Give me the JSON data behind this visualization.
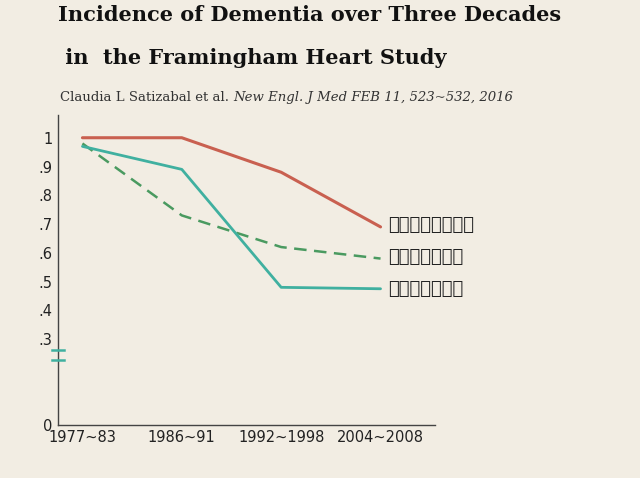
{
  "title_line1": "Incidence of Dementia over Three Decades",
  "title_line2": " in  the Framingham Heart Study",
  "subtitle_normal": "Claudia L Satizabal et al. ",
  "subtitle_italic": "New Engl. J Med FEB 11, 523~532, 2016",
  "x_labels": [
    "1977~83",
    "1986~91",
    "1992~1998",
    "2004~2008"
  ],
  "x_positions": [
    0,
    1,
    2,
    3
  ],
  "alzheimer": [
    1.0,
    1.0,
    0.88,
    0.69
  ],
  "all_dementia": [
    0.98,
    0.73,
    0.62,
    0.58
  ],
  "vascular": [
    0.97,
    0.89,
    0.48,
    0.475
  ],
  "alzheimer_color": "#c96050",
  "all_dementia_color": "#4a9a60",
  "vascular_color": "#40b0a0",
  "label_alzheimer": "アルツハイマー病",
  "label_all": "すべての認知症",
  "label_vascular": "脳血管性認知症",
  "y_ticks": [
    0,
    0.3,
    0.4,
    0.5,
    0.6,
    0.7,
    0.8,
    0.9,
    1.0
  ],
  "y_tick_labels": [
    "0",
    ".3",
    ".4",
    ".5",
    ".6",
    ".7",
    ".8",
    ".9",
    "1"
  ],
  "ylim": [
    0,
    1.08
  ],
  "xlim": [
    -0.25,
    3.55
  ],
  "background_color": "#f2ede3"
}
